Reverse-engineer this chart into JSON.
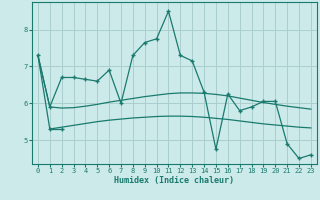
{
  "xlabel": "Humidex (Indice chaleur)",
  "bg_color": "#cceaea",
  "grid_color": "#aacfcf",
  "line_color": "#1a7a6e",
  "xlim": [
    -0.5,
    23.5
  ],
  "ylim": [
    4.35,
    8.75
  ],
  "yticks": [
    5,
    6,
    7,
    8
  ],
  "xticks": [
    0,
    1,
    2,
    3,
    4,
    5,
    6,
    7,
    8,
    9,
    10,
    11,
    12,
    13,
    14,
    15,
    16,
    17,
    18,
    19,
    20,
    21,
    22,
    23
  ],
  "series0": [
    7.3,
    5.9,
    6.7,
    6.7,
    6.65,
    6.6,
    6.9,
    6.0,
    7.3,
    7.65,
    7.75,
    8.5,
    7.3,
    7.15,
    6.3,
    4.75,
    6.25,
    5.8,
    5.9,
    6.05,
    6.05,
    4.9,
    4.5,
    4.6
  ],
  "series1_x": [
    1,
    2
  ],
  "series1_y": [
    5.3,
    5.3
  ],
  "trend1": [
    7.3,
    5.9,
    5.87,
    5.88,
    5.92,
    5.97,
    6.03,
    6.08,
    6.13,
    6.18,
    6.22,
    6.26,
    6.28,
    6.28,
    6.27,
    6.24,
    6.2,
    6.14,
    6.08,
    6.02,
    5.97,
    5.92,
    5.88,
    5.84
  ],
  "trend2": [
    7.3,
    5.3,
    5.35,
    5.4,
    5.45,
    5.5,
    5.54,
    5.57,
    5.6,
    5.62,
    5.64,
    5.65,
    5.65,
    5.64,
    5.62,
    5.59,
    5.56,
    5.52,
    5.48,
    5.44,
    5.41,
    5.38,
    5.35,
    5.33
  ]
}
